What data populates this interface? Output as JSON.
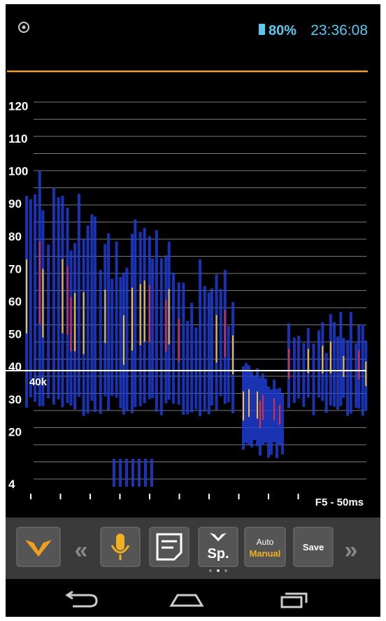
{
  "status_bar": {
    "battery": "80%",
    "time": "23:36:08"
  },
  "spectrogram": {
    "y_labels": [
      120,
      110,
      100,
      90,
      80,
      70,
      60,
      50,
      40,
      30,
      20,
      4
    ],
    "marker_label": "40k",
    "scale_label": "F5 - 50ms"
  },
  "toolbar": {
    "species_button": "Sp.",
    "mode_button": {
      "top": "Auto",
      "bottom": "Manual"
    },
    "save_button": "Save"
  }
}
